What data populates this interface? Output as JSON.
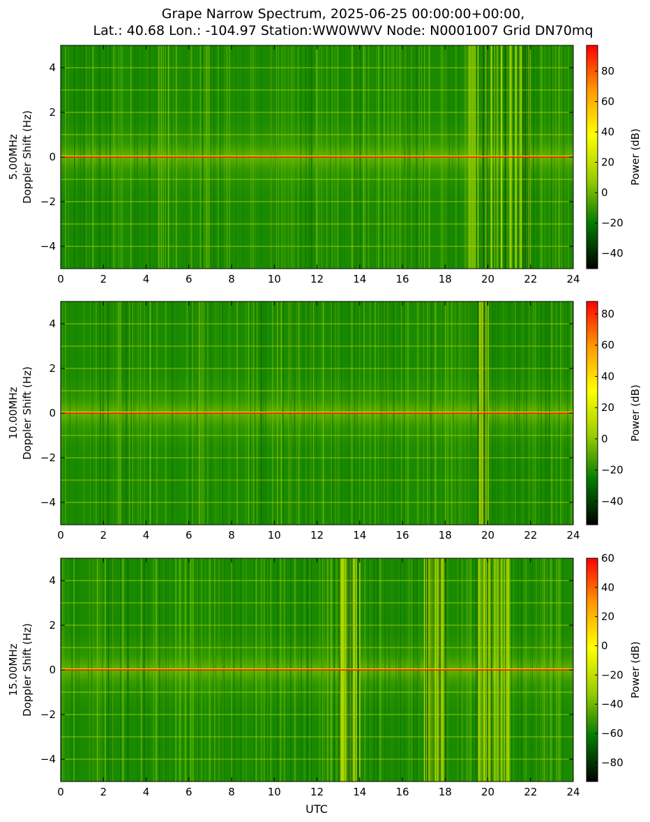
{
  "figure": {
    "title_line1": "Grape Narrow Spectrum, 2025-06-25 00:00:00+00:00,",
    "title_line2": "Lat.: 40.68 Lon.: -104.97 Station:WW0WWV Node: N0001007 Grid DN70mq",
    "xlabel": "UTC"
  },
  "colors": {
    "colormap": [
      "#000000",
      "#007a00",
      "#9acd00",
      "#ffff00",
      "#ff9900",
      "#ff0000"
    ],
    "carrier": "#ff0000",
    "harmonic_line": "#c8e000"
  },
  "chart_data": [
    {
      "type": "heatmap",
      "name": "5.00MHz",
      "ylabel_line1": "5.00MHz",
      "ylabel_line2": "Doppler Shift (Hz)",
      "xlim": [
        0,
        24
      ],
      "ylim": [
        -5,
        5
      ],
      "xticks": [
        0,
        2,
        4,
        6,
        8,
        10,
        12,
        14,
        16,
        18,
        20,
        22,
        24
      ],
      "yticks": [
        -4,
        -2,
        0,
        2,
        4
      ],
      "colorbar": {
        "label": "Power (dB)",
        "range": [
          -50,
          97
        ],
        "ticks": [
          -40,
          -20,
          0,
          20,
          40,
          60,
          80
        ]
      },
      "carrier_hz": 0,
      "active_hours": [
        [
          19,
          22
        ]
      ],
      "harmonic_lines_hz": [
        -4,
        -3,
        -2,
        -1,
        1,
        2,
        3,
        4
      ]
    },
    {
      "type": "heatmap",
      "name": "10.00MHz",
      "ylabel_line1": "10.00MHz",
      "ylabel_line2": "Doppler Shift (Hz)",
      "xlim": [
        0,
        24
      ],
      "ylim": [
        -5,
        5
      ],
      "xticks": [
        0,
        2,
        4,
        6,
        8,
        10,
        12,
        14,
        16,
        18,
        20,
        22,
        24
      ],
      "yticks": [
        -4,
        -2,
        0,
        2,
        4
      ],
      "colorbar": {
        "label": "Power (dB)",
        "range": [
          -55,
          88
        ],
        "ticks": [
          -40,
          -20,
          0,
          20,
          40,
          60,
          80
        ]
      },
      "carrier_hz": 0,
      "active_hours": [
        [
          19.5,
          20
        ]
      ],
      "harmonic_lines_hz": [
        -4,
        -3,
        -2,
        -1,
        1,
        2,
        3,
        4
      ]
    },
    {
      "type": "heatmap",
      "name": "15.00MHz",
      "ylabel_line1": "15.00MHz",
      "ylabel_line2": "Doppler Shift (Hz)",
      "xlim": [
        0,
        24
      ],
      "ylim": [
        -5,
        5
      ],
      "xticks": [
        0,
        2,
        4,
        6,
        8,
        10,
        12,
        14,
        16,
        18,
        20,
        22,
        24
      ],
      "yticks": [
        -4,
        -2,
        0,
        2,
        4
      ],
      "colorbar": {
        "label": "Power (dB)",
        "range": [
          -93,
          60
        ],
        "ticks": [
          -80,
          -60,
          -40,
          -20,
          0,
          20,
          40,
          60
        ]
      },
      "carrier_hz": 0,
      "active_hours": [
        [
          13,
          14
        ],
        [
          17,
          18
        ],
        [
          19.5,
          21
        ]
      ],
      "harmonic_lines_hz": [
        -4,
        -3,
        -2,
        -1,
        1,
        2,
        3,
        4
      ]
    }
  ]
}
